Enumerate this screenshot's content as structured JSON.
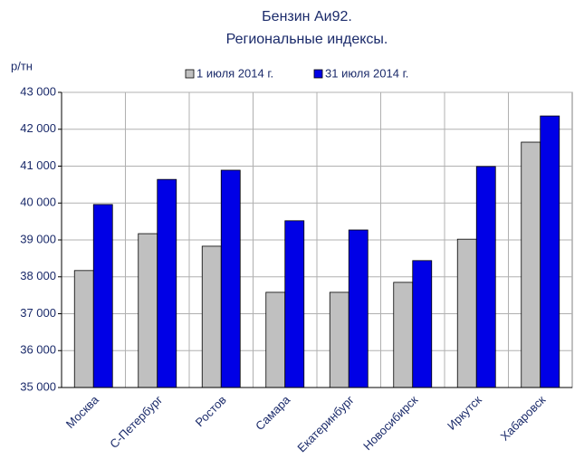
{
  "chart_data": {
    "type": "bar",
    "title": [
      "Бензин Аи92.",
      "Региональные индексы."
    ],
    "y_label": "р/тн",
    "categories": [
      "Москва",
      "С-Петербург",
      "Ростов",
      "Самара",
      "Екатеринбург",
      "Новосибирск",
      "Иркутск",
      "Хабаровск"
    ],
    "series": [
      {
        "name": "1 июля 2014 г.",
        "color": "#c0c0c0",
        "values": [
          38170,
          39170,
          38830,
          37580,
          37580,
          37850,
          39020,
          41650
        ]
      },
      {
        "name": "31 июля 2014 г.",
        "color": "#0000e6",
        "values": [
          39960,
          40640,
          40890,
          39520,
          39270,
          38440,
          40990,
          42360
        ]
      }
    ],
    "ylim": [
      35000,
      43000
    ],
    "yticks": [
      {
        "value": 35000,
        "label": "35 000"
      },
      {
        "value": 36000,
        "label": "36 000"
      },
      {
        "value": 37000,
        "label": "37 000"
      },
      {
        "value": 38000,
        "label": "38 000"
      },
      {
        "value": 39000,
        "label": "39 000"
      },
      {
        "value": 40000,
        "label": "40 000"
      },
      {
        "value": 41000,
        "label": "41 000"
      },
      {
        "value": 42000,
        "label": "42 000"
      },
      {
        "value": 43000,
        "label": "43 000"
      }
    ],
    "grid": true,
    "legend": "top"
  }
}
